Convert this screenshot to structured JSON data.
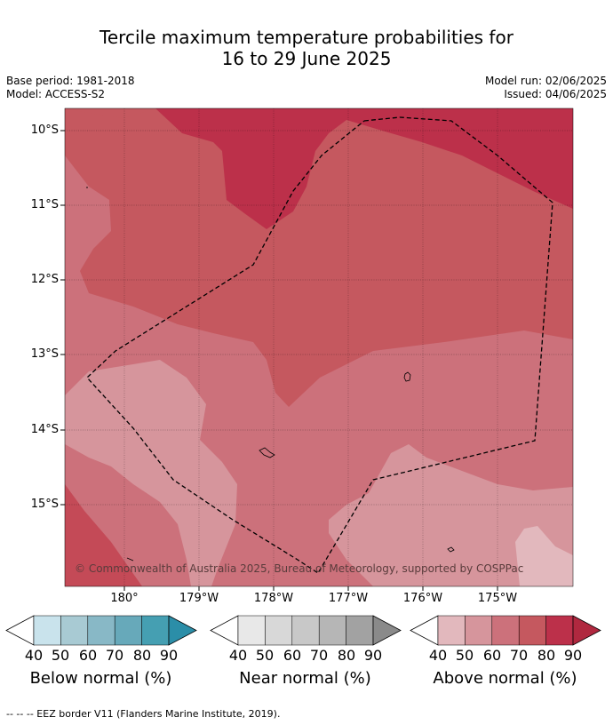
{
  "title_line1": "Tercile maximum temperature probabilities for",
  "title_line2": "16 to 29 June 2025",
  "base_period": "Base period: 1981-2018",
  "model": "Model: ACCESS-S2",
  "model_run": "Model run: 02/06/2025",
  "issued": "Issued: 04/06/2025",
  "lat_labels": [
    "10°S",
    "11°S",
    "12°S",
    "13°S",
    "14°S",
    "15°S"
  ],
  "lon_labels": [
    "180°",
    "179°W",
    "178°W",
    "177°W",
    "176°W",
    "175°W"
  ],
  "copyright": "© Commonwealth of Australia 2025, Bureau of Meteorology, supported by COSPPac",
  "colorbars": [
    {
      "title": "Below normal (%)",
      "ticks": [
        "40",
        "50",
        "60",
        "70",
        "80",
        "90"
      ],
      "colors": [
        "#c9e3ec",
        "#a8cad3",
        "#88b8c6",
        "#67a9ba",
        "#459fb2",
        "#2b8ea8"
      ]
    },
    {
      "title": "Near normal (%)",
      "ticks": [
        "40",
        "50",
        "60",
        "70",
        "80",
        "90"
      ],
      "colors": [
        "#e8e8e8",
        "#d8d8d8",
        "#c8c8c8",
        "#b6b6b6",
        "#a2a2a2",
        "#8a8a8a"
      ]
    },
    {
      "title": "Above normal (%)",
      "ticks": [
        "40",
        "50",
        "60",
        "70",
        "80",
        "90"
      ],
      "colors": [
        "#e2b8bd",
        "#d6959c",
        "#cc717b",
        "#c5585f",
        "#bc304a",
        "#b0283f"
      ]
    }
  ],
  "footer": "--  --  -- EEZ border V11 (Flanders Marine Institute, 2019)."
}
